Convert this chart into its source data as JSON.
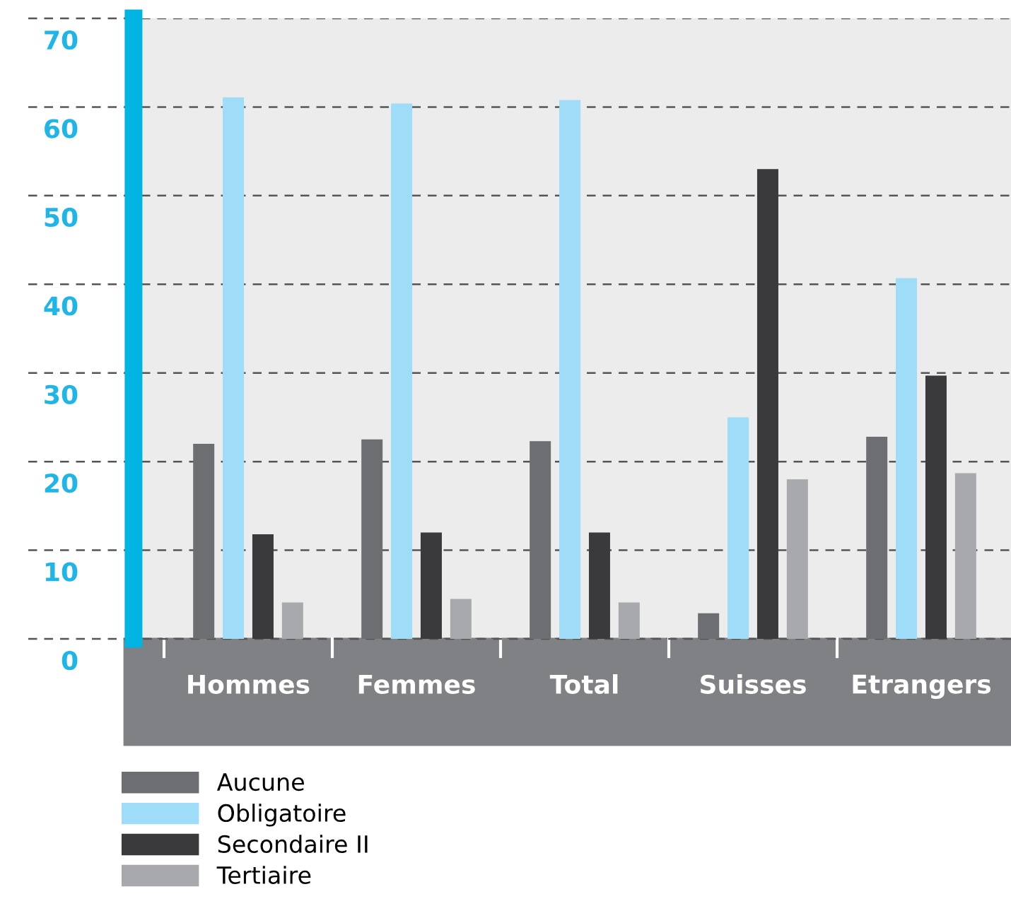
{
  "chart_data": {
    "type": "bar",
    "categories": [
      "Hommes",
      "Femmes",
      "Total",
      "Suisses",
      "Etrangers"
    ],
    "series": [
      {
        "name": "Aucune",
        "color": "#6d6e71",
        "values": [
          22.0,
          22.5,
          22.3,
          2.9,
          22.8
        ]
      },
      {
        "name": "Obligatoire",
        "color": "#9edcf7",
        "values": [
          61.1,
          60.4,
          60.8,
          25.0,
          40.7
        ]
      },
      {
        "name": "Secondaire II",
        "color": "#3a3a3c",
        "values": [
          11.8,
          12.0,
          12.0,
          53.0,
          29.7
        ]
      },
      {
        "name": "Tertiaire",
        "color": "#a7a9ac",
        "values": [
          4.1,
          4.5,
          4.1,
          18.0,
          18.7
        ]
      }
    ],
    "ylim": [
      0,
      70
    ],
    "yticks": [
      0,
      10,
      20,
      30,
      40,
      50,
      60,
      70
    ],
    "grid": "y",
    "legend": "bottom"
  }
}
